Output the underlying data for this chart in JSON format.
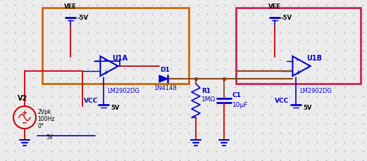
{
  "bg_color": "#ebebeb",
  "dot_color": "#b8b8c8",
  "blue": "#0000cc",
  "brown": "#8B4513",
  "red": "#cc0000",
  "black": "#000000",
  "orange_box": "#cc6600",
  "pink_box": "#cc2255",
  "vee_label": "VEE",
  "vee_voltage": "-5V",
  "vcc_label": "VCC",
  "vcc_voltage": "5V",
  "u1a_label": "U1A",
  "u1b_label": "U1B",
  "lm_label": "LM2902DG",
  "d1_label": "D1",
  "d1_part": "1N4148",
  "r1_label": "R1",
  "r1_val": "1MΩ",
  "c1_label": "C1",
  "c1_val": "10μF",
  "v2_label": "V2",
  "v2_val1": "2Vpk",
  "v2_val2": "100Hz",
  "v2_val3": "0°",
  "v2_vcc": "5V"
}
